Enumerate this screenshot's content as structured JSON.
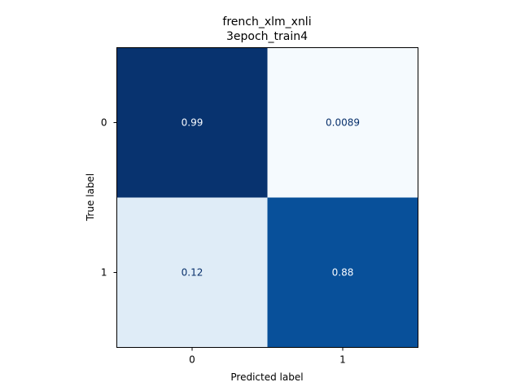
{
  "chart_data": {
    "type": "heatmap",
    "title_lines": [
      "french_xlm_xnli",
      "3epoch_train4"
    ],
    "xlabel": "Predicted label",
    "ylabel": "True label",
    "x_categories": [
      "0",
      "1"
    ],
    "y_categories": [
      "0",
      "1"
    ],
    "values": [
      [
        0.99,
        0.0089
      ],
      [
        0.12,
        0.88
      ]
    ],
    "value_labels": [
      [
        "0.99",
        "0.0089"
      ],
      [
        "0.12",
        "0.88"
      ]
    ],
    "value_range": [
      0,
      1
    ],
    "colormap": "Blues",
    "colormap_stops": [
      "#f7fbff",
      "#deebf7",
      "#c6dbef",
      "#9ecae1",
      "#6baed6",
      "#4292c6",
      "#2171b5",
      "#08519c",
      "#08306b"
    ],
    "grid": false,
    "colorbar": false
  }
}
